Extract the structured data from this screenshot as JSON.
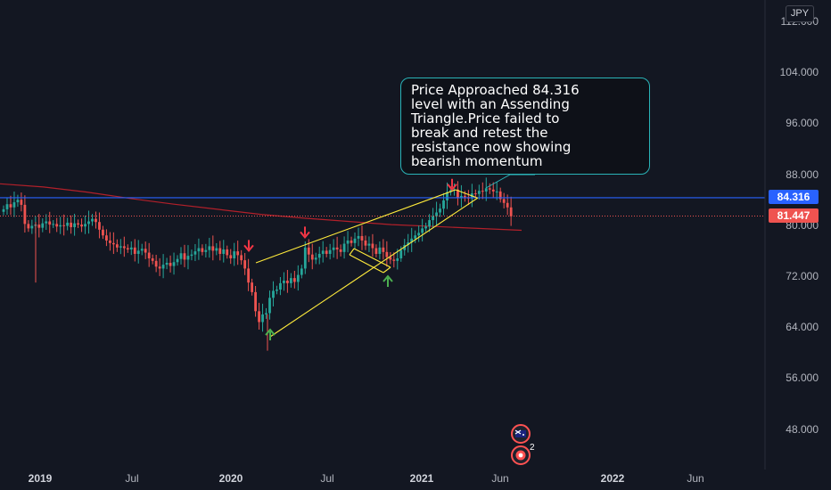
{
  "currency_button": "JPY",
  "annotation": {
    "text": "Price Approached 84.316\nlevel with an Assending\nTriangle.Price  failed to\nbreak and retest the\nresistance now showing\nbearish momentum"
  },
  "price_tags": {
    "resistance": "84.316",
    "current": "81.447"
  },
  "colors": {
    "background": "#131722",
    "up_candle": "#26a69a",
    "down_candle": "#ef5350",
    "resistance_line": "#2962ff",
    "moving_average": "#b2202a",
    "trendline": "#ffeb3b",
    "annotation_border": "#2ab3b7",
    "buy_arrow": "#4caf50",
    "sell_arrow": "#f23645"
  },
  "event_badges": {
    "second_count": "2"
  },
  "chart_data": {
    "type": "candlestick",
    "title": "",
    "xlabel": "",
    "ylabel": "",
    "x_ticks": [
      "2019",
      "Jul",
      "2020",
      "Jul",
      "2021",
      "Jun",
      "2022",
      "Jun"
    ],
    "y_ticks": [
      "112.000",
      "104.000",
      "96.000",
      "88.000",
      "80.000",
      "72.000",
      "64.000",
      "56.000",
      "48.000"
    ],
    "ylim": [
      44.5,
      114.0
    ],
    "grid": false,
    "resistance_level": 84.316,
    "last_price": 81.447,
    "moving_average": [
      86.5,
      86.0,
      85.2,
      84.2,
      83.3,
      82.5,
      81.7,
      81.1,
      80.6,
      80.1,
      79.8,
      79.5,
      79.2
    ],
    "closes": [
      82.5,
      83.3,
      82.8,
      83.6,
      84.0,
      83.2,
      80.2,
      79.5,
      79.9,
      80.1,
      79.6,
      80.3,
      80.6,
      80.1,
      80.2,
      79.8,
      80.0,
      79.9,
      80.4,
      79.7,
      80.3,
      80.1,
      79.8,
      80.2,
      80.6,
      81.0,
      80.5,
      79.3,
      78.4,
      77.6,
      77.2,
      77.0,
      76.5,
      76.7,
      76.4,
      76.2,
      76.5,
      75.5,
      76.0,
      76.3,
      75.7,
      74.8,
      74.4,
      73.5,
      73.2,
      73.8,
      74.1,
      73.6,
      74.2,
      74.7,
      75.6,
      74.6,
      75.2,
      75.4,
      75.9,
      76.4,
      75.8,
      76.1,
      76.7,
      76.0,
      76.4,
      75.5,
      76.2,
      75.3,
      74.8,
      75.9,
      75.3,
      74.5,
      73.2,
      71.0,
      69.5,
      66.5,
      64.8,
      66.0,
      66.2,
      68.6,
      69.7,
      69.9,
      70.9,
      71.3,
      70.9,
      71.7,
      71.1,
      72.2,
      73.2,
      76.5,
      75.4,
      74.6,
      74.9,
      75.5,
      76.0,
      75.5,
      76.1,
      76.5,
      76.2,
      75.8,
      77.1,
      77.6,
      77.2,
      77.9,
      78.3,
      77.6,
      76.8,
      77.1,
      76.4,
      75.5,
      76.5,
      75.8,
      75.0,
      74.6,
      74.4,
      74.8,
      76.1,
      76.9,
      77.3,
      77.9,
      78.4,
      78.8,
      79.5,
      79.8,
      80.8,
      81.4,
      82.0,
      82.6,
      83.9,
      85.2,
      85.5,
      85.6,
      84.3,
      84.6,
      84.4,
      84.2,
      85.0,
      84.9,
      85.4,
      85.3,
      85.8,
      85.6,
      85.3,
      85.3,
      84.1,
      83.5,
      82.8,
      81.4
    ],
    "annotations": [
      {
        "type": "sell_arrow",
        "price": 76.7
      },
      {
        "type": "sell_arrow",
        "price": 78.8
      },
      {
        "type": "sell_arrow",
        "price": 86.3
      },
      {
        "type": "buy_arrow",
        "price": 62.9
      },
      {
        "type": "buy_arrow",
        "price": 71.3
      }
    ]
  }
}
